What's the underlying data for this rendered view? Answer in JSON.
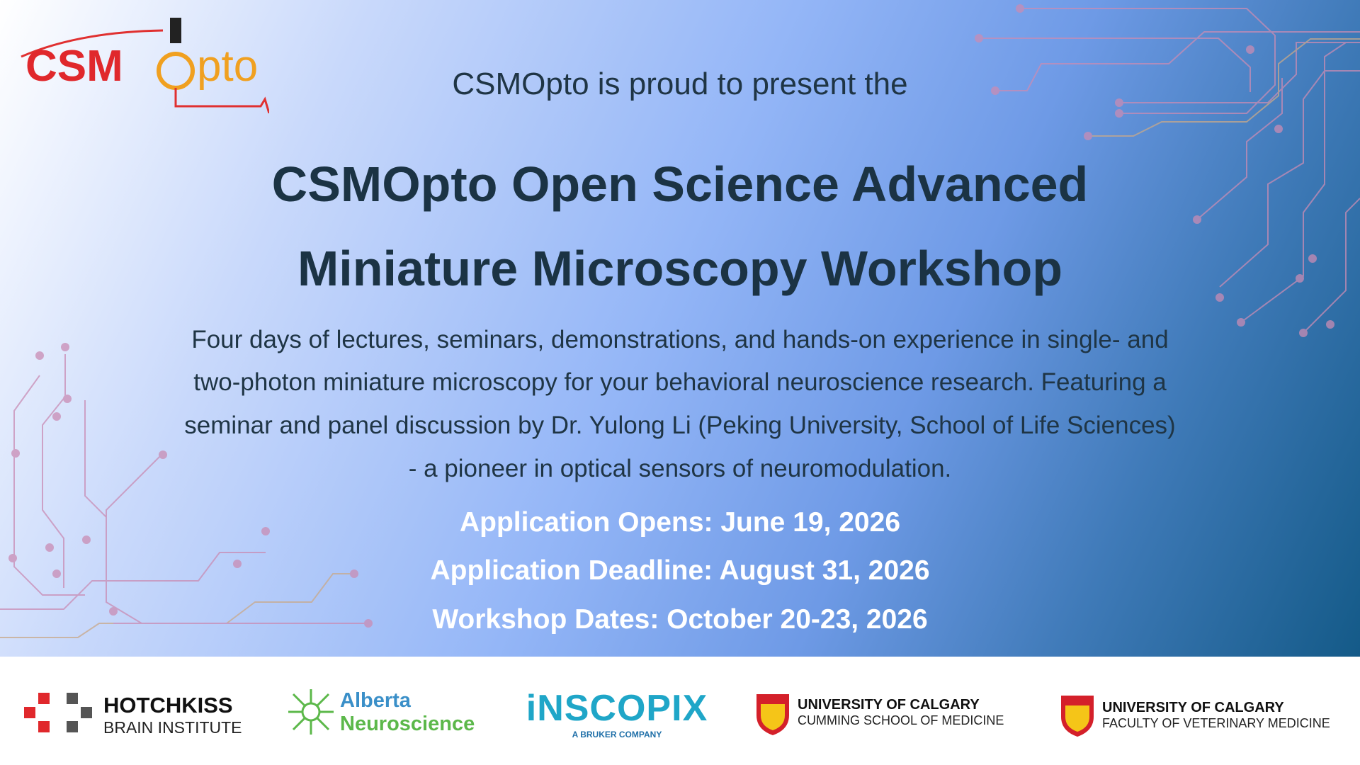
{
  "logo": {
    "left": "CSM",
    "right": "pto"
  },
  "intro": "CSMOpto is proud to present the",
  "title": [
    "CSMOpto Open Science Advanced",
    "Miniature Microscopy Workshop"
  ],
  "description": [
    "Four days of lectures, seminars, demonstrations, and hands-on experience in single- and",
    "two-photon miniature microscopy for your behavioral neuroscience research. Featuring a",
    "seminar and panel discussion by Dr. Yulong Li (Peking University, School of Life Sciences)",
    "- a pioneer in optical sensors of neuromodulation."
  ],
  "dates": [
    "Application Opens: June 19, 2026",
    "Application Deadline: August 31, 2026",
    "Workshop Dates: October 20-23, 2026"
  ],
  "sponsors": [
    {
      "name": "HOTCHKISS",
      "sub": "BRAIN INSTITUTE"
    },
    {
      "name": "Alberta",
      "sub": "Neuroscience"
    },
    {
      "name": "iNSCOPIX",
      "sub": "A BRUKER COMPANY"
    },
    {
      "name": "UNIVERSITY OF CALGARY",
      "sub": "CUMMING SCHOOL OF MEDICINE"
    },
    {
      "name": "UNIVERSITY OF CALGARY",
      "sub": "FACULTY OF VETERINARY MEDICINE"
    }
  ]
}
